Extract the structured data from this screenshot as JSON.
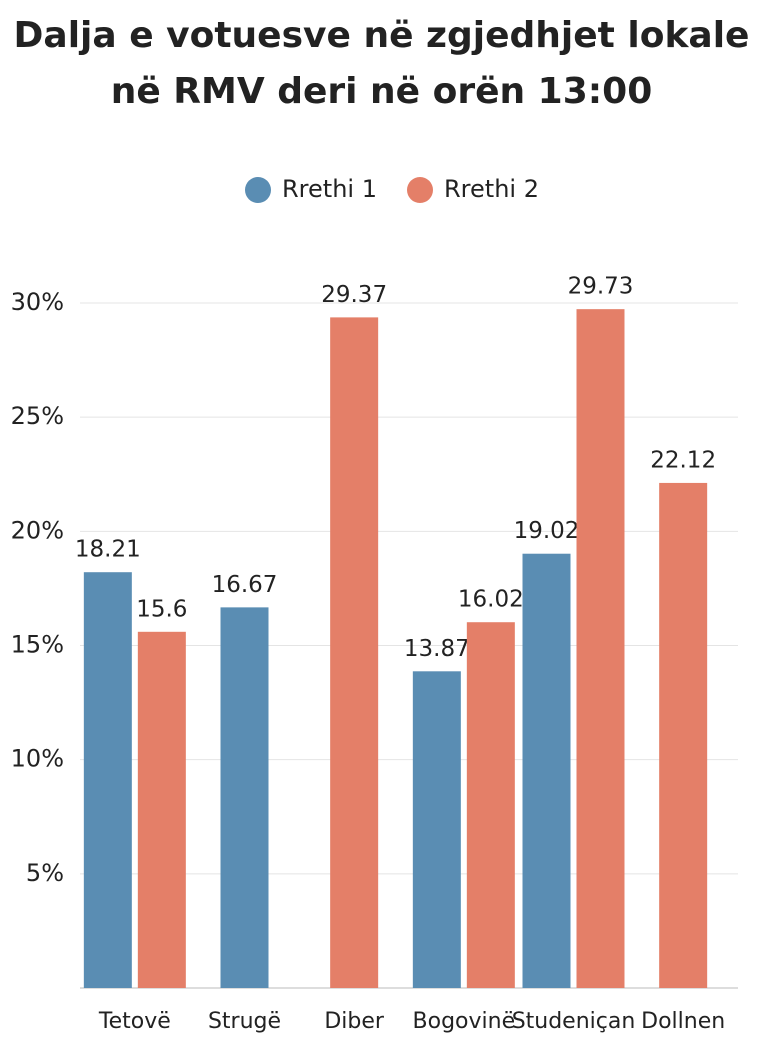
{
  "chart_data": {
    "type": "bar",
    "title": "Dalja e votuesve në zgjedhjet lokale në RMV deri në orën 13:00",
    "categories": [
      "Tetovë",
      "Strugë",
      "Diber",
      "Bogovinë",
      "Studeniçan",
      "Dollnen"
    ],
    "series": [
      {
        "name": "Rrethi 1",
        "color": "#5a8db3",
        "values": [
          18.21,
          16.67,
          null,
          13.87,
          19.02,
          null
        ]
      },
      {
        "name": "Rrethi 2",
        "color": "#e47f68",
        "values": [
          15.6,
          null,
          29.37,
          16.02,
          29.73,
          22.12
        ]
      }
    ],
    "ylim": [
      0,
      30
    ],
    "yticks": [
      {
        "value": 5,
        "label": "5%"
      },
      {
        "value": 10,
        "label": "10%"
      },
      {
        "value": 15,
        "label": "15%"
      },
      {
        "value": 20,
        "label": "20%"
      },
      {
        "value": 25,
        "label": "25%"
      },
      {
        "value": 30,
        "label": "30%"
      }
    ],
    "grid": true
  }
}
